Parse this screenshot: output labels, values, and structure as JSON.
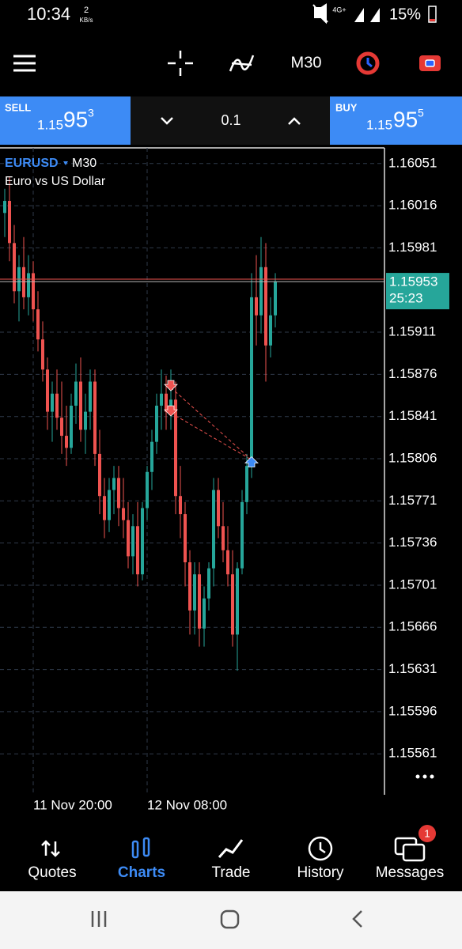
{
  "status_bar": {
    "time": "10:34",
    "speed": "2",
    "speed_unit": "KB/s",
    "network": "4G+",
    "battery": "15%"
  },
  "toolbar": {
    "timeframe": "M30"
  },
  "trade_panel": {
    "sell": {
      "label": "SELL",
      "price_main": "1.15",
      "price_big": "95",
      "price_sup": "3"
    },
    "volume": "0.1",
    "buy": {
      "label": "BUY",
      "price_main": "1.15",
      "price_big": "95",
      "price_sup": "5"
    }
  },
  "chart_data": {
    "type": "candlestick",
    "title": "EURUSD",
    "timeframe": "M30",
    "subtitle": "Euro vs US Dollar",
    "open": [
      1.1601,
      1.1602,
      1.15985,
      1.15945,
      1.15965,
      1.1594,
      1.1596,
      1.1593,
      1.15905,
      1.1588,
      1.15845,
      1.1586,
      1.1584,
      1.15825,
      1.15815,
      1.1585,
      1.1587,
      1.1583,
      1.15845,
      1.1587,
      1.1581,
      1.15775,
      1.15755,
      1.1578,
      1.1579,
      1.15765,
      1.15755,
      1.15725,
      1.1575,
      1.1571,
      1.15765,
      1.15795,
      1.1582,
      1.1585,
      1.1586,
      1.15845,
      1.15855,
      1.15775,
      1.1576,
      1.1572,
      1.1568,
      1.1571,
      1.15665,
      1.1569,
      1.15715,
      1.1578,
      1.1575,
      1.1573,
      1.1571,
      1.1566,
      1.15715,
      1.1577,
      1.158,
      1.1594,
      1.15925,
      1.15965,
      1.159,
      1.15925
    ],
    "high": [
      1.1603,
      1.1604,
      1.16,
      1.15975,
      1.1599,
      1.15975,
      1.1597,
      1.15945,
      1.1592,
      1.1589,
      1.1587,
      1.1588,
      1.1587,
      1.1585,
      1.1586,
      1.15885,
      1.1589,
      1.1586,
      1.1588,
      1.1588,
      1.1583,
      1.1579,
      1.1579,
      1.158,
      1.158,
      1.1579,
      1.1577,
      1.1576,
      1.1577,
      1.1577,
      1.158,
      1.1583,
      1.1586,
      1.1588,
      1.15875,
      1.1588,
      1.1587,
      1.158,
      1.1577,
      1.1573,
      1.1572,
      1.1572,
      1.157,
      1.1572,
      1.1579,
      1.1579,
      1.1577,
      1.1575,
      1.1573,
      1.1572,
      1.1578,
      1.1581,
      1.1596,
      1.15975,
      1.1599,
      1.15985,
      1.1594,
      1.1596
    ],
    "low": [
      1.1599,
      1.1597,
      1.15935,
      1.1592,
      1.1593,
      1.15925,
      1.1592,
      1.15895,
      1.1587,
      1.1583,
      1.1582,
      1.1583,
      1.1581,
      1.158,
      1.1581,
      1.15835,
      1.1582,
      1.1581,
      1.1583,
      1.158,
      1.1576,
      1.1574,
      1.15745,
      1.1576,
      1.1575,
      1.1574,
      1.15715,
      1.1571,
      1.157,
      1.15705,
      1.15755,
      1.1578,
      1.1581,
      1.1583,
      1.1583,
      1.1583,
      1.1576,
      1.1574,
      1.157,
      1.1566,
      1.1566,
      1.1565,
      1.1565,
      1.1568,
      1.157,
      1.1574,
      1.1572,
      1.157,
      1.1565,
      1.1563,
      1.1571,
      1.1576,
      1.1579,
      1.159,
      1.1591,
      1.1587,
      1.1589,
      1.15915
    ],
    "close": [
      1.1602,
      1.15985,
      1.15945,
      1.15965,
      1.1594,
      1.1596,
      1.1593,
      1.15905,
      1.1588,
      1.15845,
      1.1586,
      1.1584,
      1.15825,
      1.15815,
      1.1585,
      1.1587,
      1.1583,
      1.15845,
      1.1587,
      1.1581,
      1.15775,
      1.15755,
      1.1578,
      1.1579,
      1.15765,
      1.15755,
      1.15725,
      1.1575,
      1.1571,
      1.15765,
      1.15795,
      1.1582,
      1.1585,
      1.1586,
      1.15845,
      1.15855,
      1.15775,
      1.1576,
      1.1572,
      1.1568,
      1.1571,
      1.15665,
      1.1569,
      1.15715,
      1.1578,
      1.1575,
      1.1573,
      1.1571,
      1.1566,
      1.15715,
      1.1577,
      1.158,
      1.1594,
      1.15925,
      1.15965,
      1.159,
      1.15925,
      1.15953
    ],
    "up_color": "#26a69a",
    "down_color": "#ef5350",
    "xlim": [
      -1,
      80
    ],
    "xticks": [
      {
        "value": 6,
        "label": "11 Nov 20:00"
      },
      {
        "value": 30,
        "label": "12 Nov 08:00"
      }
    ],
    "ylim": [
      1.15527,
      1.16064
    ],
    "yticks": [
      1.16051,
      1.16016,
      1.15981,
      1.15911,
      1.15876,
      1.15841,
      1.15806,
      1.15771,
      1.15736,
      1.15701,
      1.15666,
      1.15631,
      1.15596,
      1.15561
    ],
    "grid": true,
    "last_price": 1.15953,
    "ask": 1.15955,
    "timer": "25:23",
    "sell_markers": [
      {
        "x": 35,
        "price": 1.15865
      },
      {
        "x": 35,
        "price": 1.15844
      }
    ],
    "buy_markers": [
      {
        "x": 52,
        "price": 1.15805
      }
    ]
  },
  "nav": {
    "items": [
      "Quotes",
      "Charts",
      "Trade",
      "History",
      "Messages"
    ],
    "badge": "1"
  }
}
